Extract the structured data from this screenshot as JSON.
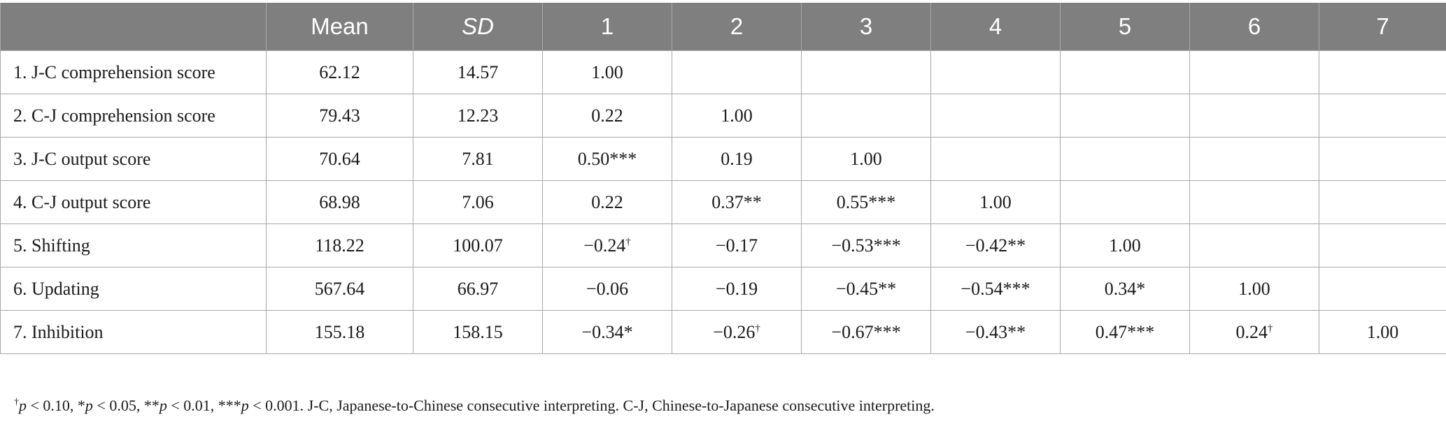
{
  "table": {
    "columns": [
      "",
      "Mean",
      "SD",
      "1",
      "2",
      "3",
      "4",
      "5",
      "6",
      "7"
    ],
    "rows": [
      {
        "label": "1. J-C comprehension score",
        "cells": [
          "62.12",
          "14.57",
          "1.00",
          "",
          "",
          "",
          "",
          "",
          ""
        ]
      },
      {
        "label": "2. C-J comprehension score",
        "cells": [
          "79.43",
          "12.23",
          "0.22",
          "1.00",
          "",
          "",
          "",
          "",
          ""
        ]
      },
      {
        "label": "3. J-C output score",
        "cells": [
          "70.64",
          "7.81",
          "0.50***",
          "0.19",
          "1.00",
          "",
          "",
          "",
          ""
        ]
      },
      {
        "label": "4. C-J output score",
        "cells": [
          "68.98",
          "7.06",
          "0.22",
          "0.37**",
          "0.55***",
          "1.00",
          "",
          "",
          ""
        ]
      },
      {
        "label": "5. Shifting",
        "cells": [
          "118.22",
          "100.07",
          "−0.24†",
          "−0.17",
          "−0.53***",
          "−0.42**",
          "1.00",
          "",
          ""
        ]
      },
      {
        "label": "6. Updating",
        "cells": [
          "567.64",
          "66.97",
          "−0.06",
          "−0.19",
          "−0.45**",
          "−0.54***",
          "0.34*",
          "1.00",
          ""
        ]
      },
      {
        "label": "7. Inhibition",
        "cells": [
          "155.18",
          "158.15",
          "−0.34*",
          "−0.26†",
          "−0.67***",
          "−0.43**",
          "0.47***",
          "0.24†",
          "1.00"
        ]
      }
    ]
  },
  "footnote": {
    "dagger": "†",
    "p_sym": "p",
    "t1": " < 0.10, *",
    "t2": " < 0.05, **",
    "t3": " < 0.01, ***",
    "t4": " < 0.001. J-C, Japanese-to-Chinese consecutive interpreting. C-J, Chinese-to-Japanese consecutive interpreting."
  }
}
